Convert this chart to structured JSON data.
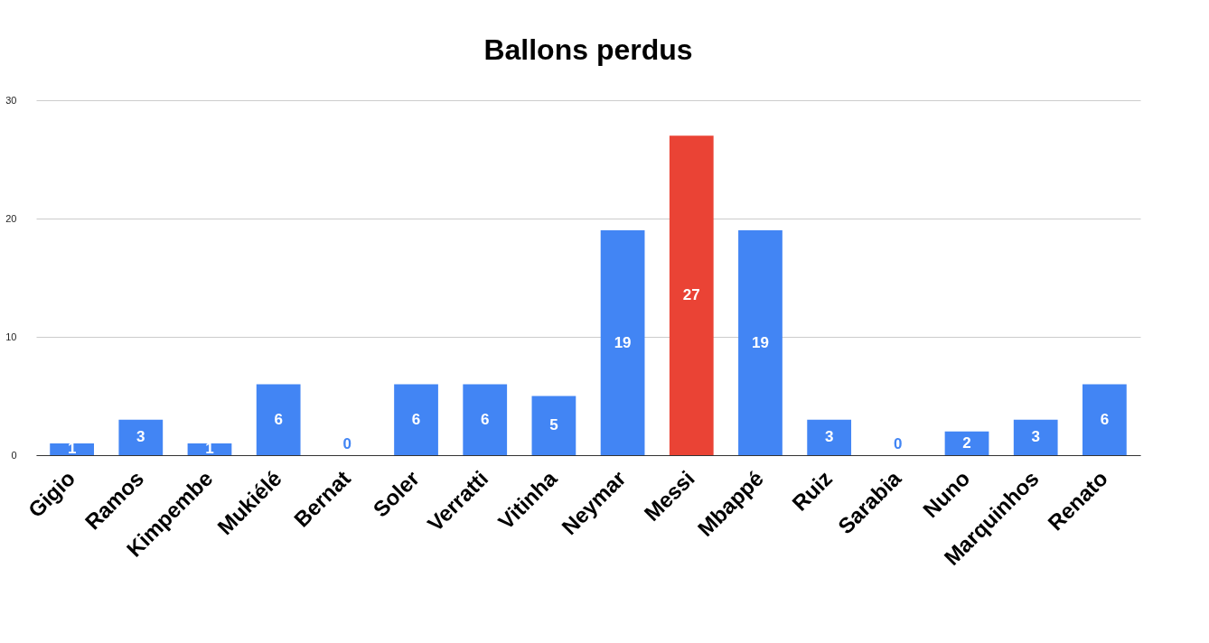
{
  "chart_data": {
    "type": "bar",
    "title": "Ballons perdus",
    "categories": [
      "Gigio",
      "Ramos",
      "Kimpembe",
      "Mukiélé",
      "Bernat",
      "Soler",
      "Verratti",
      "Vitinha",
      "Neymar",
      "Messi",
      "Mbappé",
      "Ruiz",
      "Sarabia",
      "Nuno",
      "Marquinhos",
      "Renato"
    ],
    "values": [
      1,
      3,
      1,
      6,
      0,
      6,
      6,
      5,
      19,
      27,
      19,
      3,
      0,
      2,
      3,
      6
    ],
    "colors": [
      "#4285f4",
      "#4285f4",
      "#4285f4",
      "#4285f4",
      "#4285f4",
      "#4285f4",
      "#4285f4",
      "#4285f4",
      "#4285f4",
      "#ea4335",
      "#4285f4",
      "#4285f4",
      "#4285f4",
      "#4285f4",
      "#4285f4",
      "#4285f4"
    ],
    "ylim": [
      0,
      30
    ],
    "yticks": [
      0,
      10,
      20,
      30
    ],
    "grid": "y",
    "data_labels": true
  }
}
